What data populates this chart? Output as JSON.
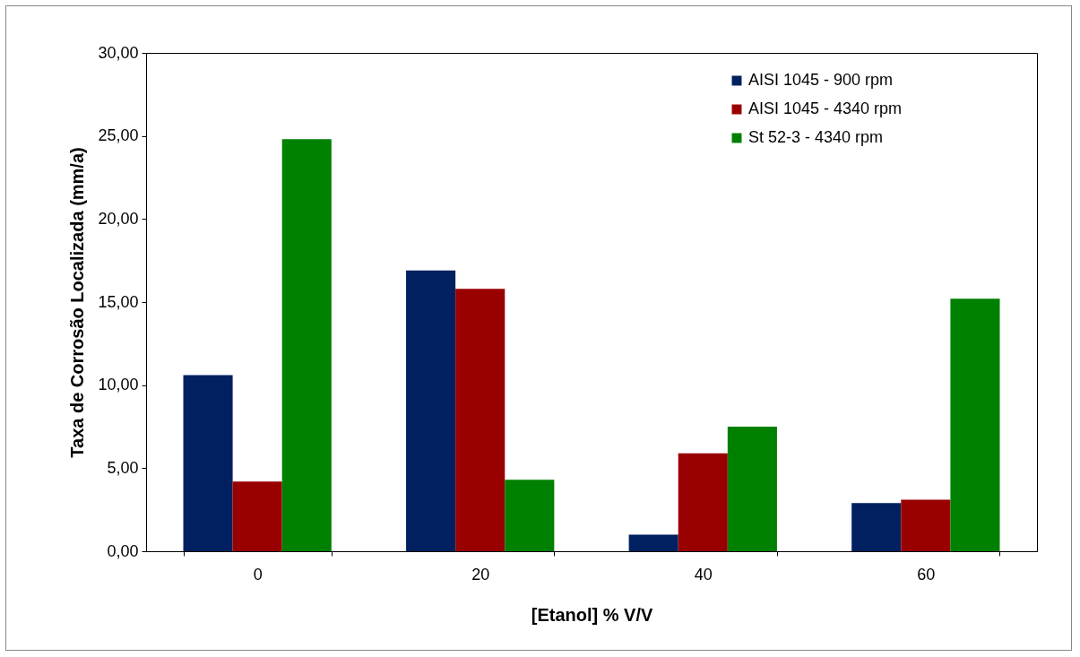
{
  "chart_data": {
    "type": "bar",
    "xlabel": "[Etanol]  % V/V",
    "ylabel": "Taxa de Corrosão Localizada (mm/a)",
    "categories": [
      "0",
      "20",
      "40",
      "60"
    ],
    "series": [
      {
        "name": "AISI 1045 - 900 rpm",
        "color": "#002060",
        "values": [
          10.6,
          16.9,
          1.0,
          2.9
        ]
      },
      {
        "name": "AISI 1045 - 4340 rpm",
        "color": "#990000",
        "values": [
          4.2,
          15.8,
          5.9,
          3.1
        ]
      },
      {
        "name": "St 52-3 - 4340 rpm",
        "color": "#008000",
        "values": [
          24.8,
          4.3,
          7.5,
          15.2
        ]
      }
    ],
    "ylim": [
      0,
      30
    ],
    "yticks": [
      {
        "value": 0,
        "label": "0,00"
      },
      {
        "value": 5,
        "label": "5,00"
      },
      {
        "value": 10,
        "label": "10,00"
      },
      {
        "value": 15,
        "label": "15,00"
      },
      {
        "value": 20,
        "label": "20,00"
      },
      {
        "value": 25,
        "label": "25,00"
      },
      {
        "value": 30,
        "label": "30,00"
      }
    ],
    "grid": false,
    "legend": "top right"
  }
}
